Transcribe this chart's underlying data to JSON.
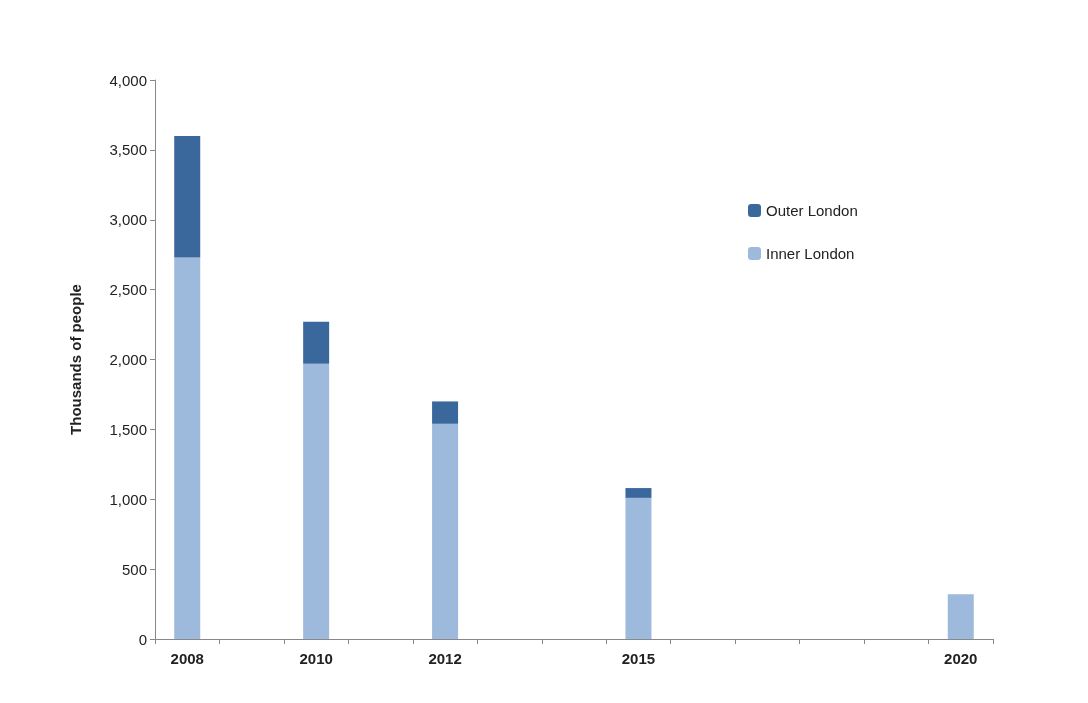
{
  "chart_data": {
    "type": "bar",
    "ylabel": "Thousands of people",
    "stacked": true,
    "categories": [
      "2008",
      null,
      "2010",
      null,
      "2012",
      null,
      null,
      "2015",
      null,
      null,
      null,
      null,
      "2020"
    ],
    "series": [
      {
        "name": "Inner London",
        "color": "#9dbadc",
        "values": [
          2730,
          null,
          1970,
          null,
          1540,
          null,
          null,
          1010,
          null,
          null,
          null,
          null,
          320
        ]
      },
      {
        "name": "Outer London",
        "color": "#3a679c",
        "values": [
          870,
          null,
          300,
          null,
          160,
          null,
          null,
          70,
          null,
          null,
          null,
          null,
          null
        ]
      }
    ],
    "ylim": [
      0,
      4000
    ],
    "yticks": [
      0,
      500,
      {
        "value": 1000,
        "label": "1,000"
      },
      {
        "value": 1500,
        "label": "1,500"
      },
      {
        "value": 2000,
        "label": "2,000"
      },
      {
        "value": 2500,
        "label": "2,500"
      },
      {
        "value": 3000,
        "label": "3,000"
      },
      {
        "value": 3500,
        "label": "3,500"
      },
      {
        "value": 4000,
        "label": "4,000"
      }
    ],
    "grid": false,
    "legend": "top right"
  }
}
